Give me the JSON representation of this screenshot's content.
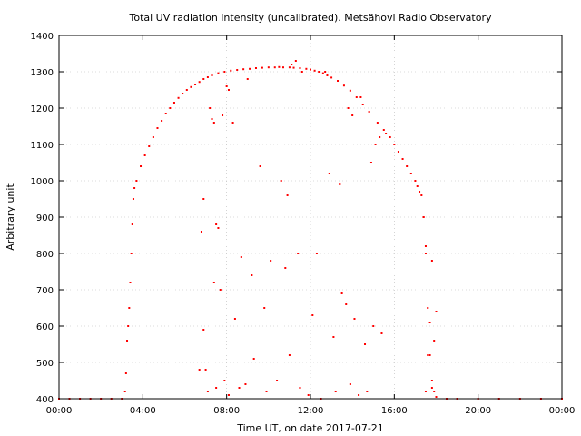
{
  "chart_data": {
    "type": "scatter",
    "title": "Total UV radiation intensity (uncalibrated). Metsähovi Radio Observatory",
    "xlabel": "Time UT, on date 2017-07-21",
    "ylabel": "Arbitrary unit",
    "xlim": [
      0,
      24
    ],
    "ylim": [
      400,
      1400
    ],
    "x_ticks": [
      0,
      4,
      8,
      12,
      16,
      20,
      24
    ],
    "x_tick_labels": [
      "00:00",
      "04:00",
      "08:00",
      "12:00",
      "16:00",
      "20:00",
      "00:00"
    ],
    "y_ticks": [
      400,
      500,
      600,
      700,
      800,
      900,
      1000,
      1100,
      1200,
      1300,
      1400
    ],
    "y_tick_labels": [
      "400",
      "500",
      "600",
      "700",
      "800",
      "900",
      "1000",
      "1100",
      "1200",
      "1300",
      "1400"
    ],
    "grid": true,
    "point_color": "#ff0000",
    "series": [
      {
        "name": "",
        "x": [
          0.0,
          0.5,
          1.0,
          1.5,
          2.0,
          2.5,
          3.0,
          3.15,
          3.2,
          3.25,
          3.3,
          3.35,
          3.4,
          3.45,
          3.5,
          3.55,
          3.6,
          3.7,
          3.9,
          4.1,
          4.3,
          4.5,
          4.7,
          4.9,
          5.1,
          5.3,
          5.5,
          5.7,
          5.9,
          6.1,
          6.3,
          6.5,
          6.7,
          6.9,
          7.1,
          7.3,
          7.6,
          7.9,
          8.2,
          8.5,
          8.8,
          9.1,
          9.4,
          9.7,
          10.0,
          10.3,
          10.5,
          10.7,
          11.0,
          11.2,
          11.5,
          11.8,
          12.0,
          12.2,
          12.4,
          12.6,
          12.8,
          13.0,
          13.3,
          13.6,
          13.9,
          14.2,
          14.5,
          14.8,
          15.2,
          15.5,
          15.8,
          16.0,
          16.2,
          16.4,
          16.6,
          16.8,
          17.0,
          17.1,
          17.2,
          17.3,
          17.4,
          17.5,
          17.6,
          17.7,
          17.8,
          17.9,
          18.0,
          18.5,
          19.0,
          20.0,
          21.0,
          22.0,
          23.0,
          24.0,
          6.8,
          6.9,
          7.2,
          7.4,
          7.5,
          7.6,
          7.3,
          7.8,
          8.0,
          8.1,
          8.3,
          9.0,
          9.6,
          10.6,
          10.9,
          11.1,
          11.3,
          11.6,
          12.7,
          12.9,
          13.4,
          13.8,
          14.0,
          14.4,
          14.9,
          15.1,
          15.3,
          15.6,
          17.4,
          17.5,
          17.8,
          6.9,
          7.0,
          7.4,
          7.7,
          8.4,
          8.7,
          9.2,
          9.8,
          10.1,
          10.8,
          11.4,
          12.1,
          12.3,
          13.1,
          13.5,
          13.7,
          14.1,
          14.6,
          15.0,
          15.4,
          17.6,
          17.7,
          17.9,
          18.0,
          6.7,
          7.1,
          7.5,
          7.9,
          8.1,
          8.6,
          8.9,
          9.3,
          9.9,
          10.4,
          11.0,
          11.5,
          11.9,
          12.5,
          13.2,
          13.9,
          14.3,
          14.7,
          17.5,
          17.8
        ],
        "y": [
          400,
          400,
          400,
          400,
          400,
          400,
          400,
          420,
          470,
          560,
          600,
          650,
          720,
          800,
          880,
          950,
          980,
          1000,
          1040,
          1070,
          1095,
          1120,
          1145,
          1165,
          1185,
          1200,
          1215,
          1228,
          1240,
          1250,
          1258,
          1265,
          1272,
          1280,
          1285,
          1290,
          1296,
          1300,
          1303,
          1305,
          1307,
          1308,
          1310,
          1311,
          1312,
          1312,
          1313,
          1312,
          1312,
          1311,
          1310,
          1308,
          1306,
          1303,
          1300,
          1296,
          1290,
          1284,
          1275,
          1262,
          1248,
          1230,
          1210,
          1190,
          1160,
          1140,
          1120,
          1100,
          1080,
          1060,
          1040,
          1020,
          1000,
          985,
          970,
          960,
          900,
          800,
          650,
          520,
          450,
          420,
          405,
          400,
          400,
          400,
          400,
          400,
          400,
          400,
          860,
          950,
          1200,
          1160,
          880,
          870,
          1170,
          1180,
          1260,
          1250,
          1160,
          1280,
          1040,
          1000,
          960,
          1320,
          1330,
          1300,
          1300,
          1020,
          990,
          1200,
          1180,
          1230,
          1050,
          1100,
          1120,
          1130,
          900,
          820,
          780,
          590,
          480,
          720,
          700,
          620,
          790,
          740,
          650,
          780,
          760,
          800,
          630,
          800,
          570,
          690,
          660,
          620,
          550,
          600,
          580,
          520,
          610,
          560,
          640,
          480,
          420,
          430,
          450,
          410,
          430,
          440,
          510,
          420,
          450,
          520,
          430,
          410,
          400,
          420,
          440,
          410,
          420,
          420,
          430
        ]
      }
    ]
  }
}
